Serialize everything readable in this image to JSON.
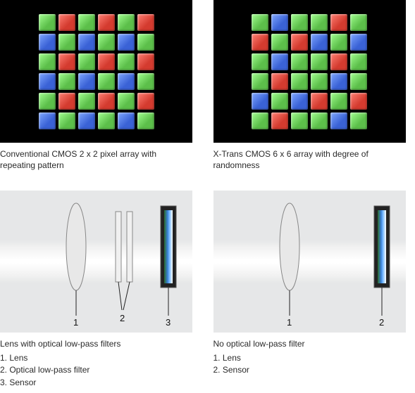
{
  "colors": {
    "R": "#d43b2f",
    "G": "#5cbf4a",
    "B": "#3a62d6"
  },
  "bayer": {
    "caption": "Conventional CMOS 2 x 2 pixel array with repeating pattern",
    "rows": [
      [
        "G",
        "R",
        "G",
        "R",
        "G",
        "R"
      ],
      [
        "B",
        "G",
        "B",
        "G",
        "B",
        "G"
      ],
      [
        "G",
        "R",
        "G",
        "R",
        "G",
        "R"
      ],
      [
        "B",
        "G",
        "B",
        "G",
        "B",
        "G"
      ],
      [
        "G",
        "R",
        "G",
        "R",
        "G",
        "R"
      ],
      [
        "B",
        "G",
        "B",
        "G",
        "B",
        "G"
      ]
    ]
  },
  "xtrans": {
    "caption": "X-Trans CMOS 6 x 6 array with degree of randomness",
    "rows": [
      [
        "G",
        "B",
        "G",
        "G",
        "R",
        "G"
      ],
      [
        "R",
        "G",
        "R",
        "B",
        "G",
        "B"
      ],
      [
        "G",
        "B",
        "G",
        "G",
        "R",
        "G"
      ],
      [
        "G",
        "R",
        "G",
        "G",
        "B",
        "G"
      ],
      [
        "B",
        "G",
        "B",
        "R",
        "G",
        "R"
      ],
      [
        "G",
        "R",
        "G",
        "G",
        "B",
        "G"
      ]
    ]
  },
  "optic_left": {
    "title": "Lens with optical low-pass filters",
    "items": [
      "1. Lens",
      "2. Optical low-pass filter",
      "3. Sensor"
    ],
    "labels": {
      "lens": "1",
      "filters": "2",
      "sensor": "3"
    }
  },
  "optic_right": {
    "title": "No optical low-pass filter",
    "items": [
      "1. Lens",
      "2. Sensor"
    ],
    "labels": {
      "lens": "1",
      "sensor": "2"
    }
  }
}
